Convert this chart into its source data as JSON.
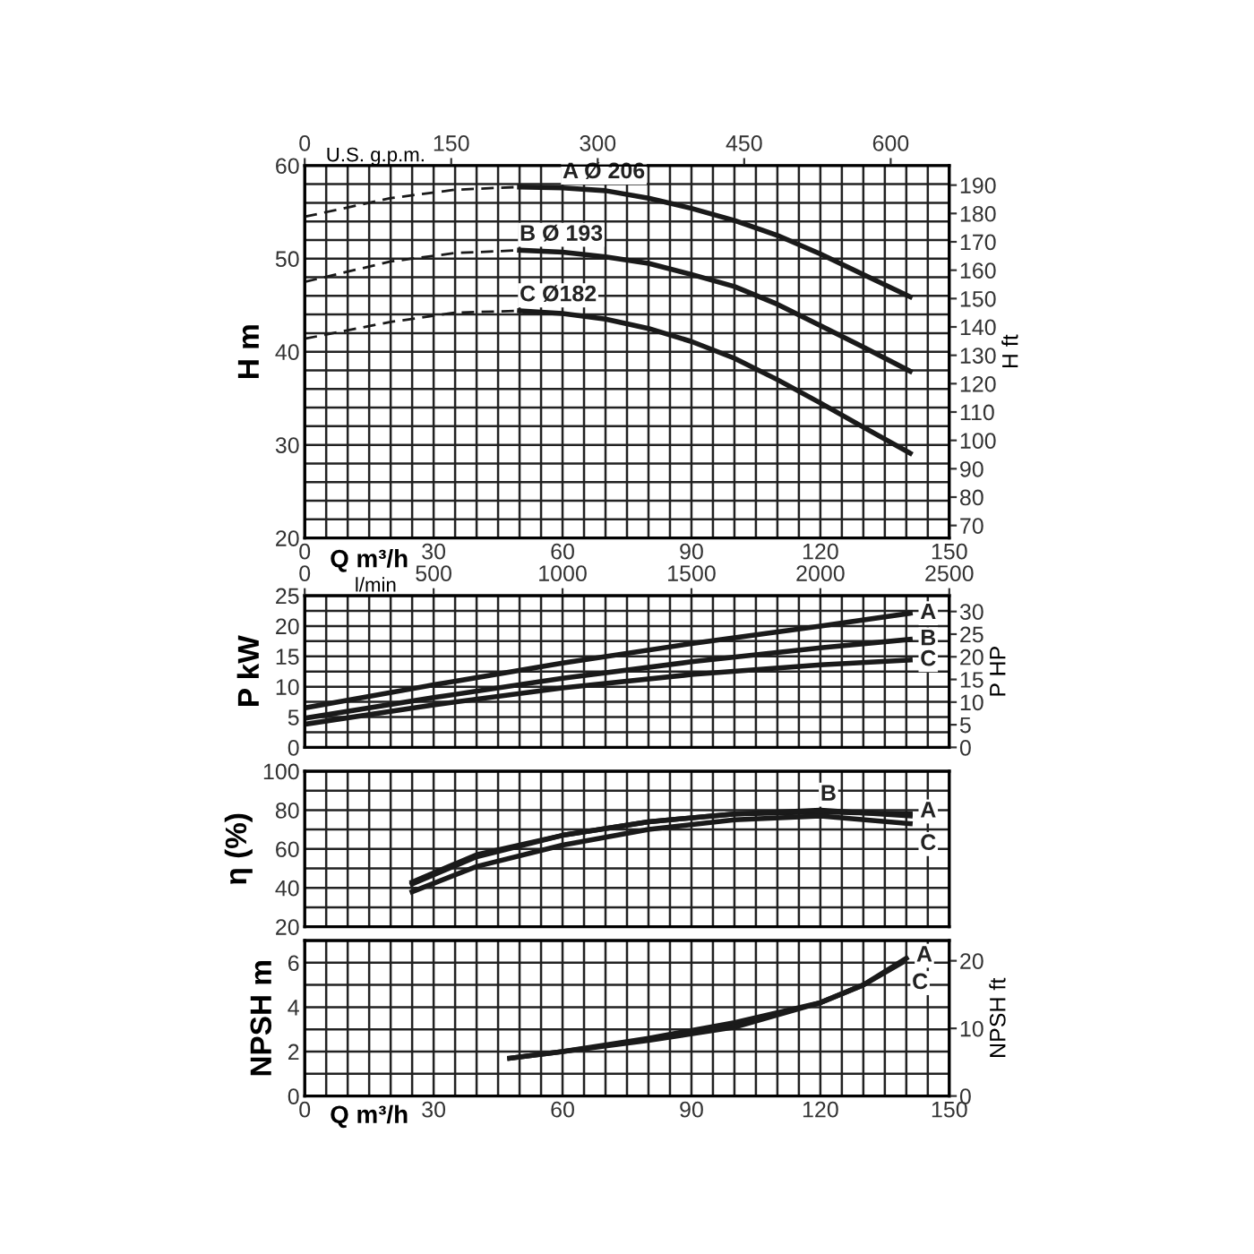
{
  "chart_data": [
    {
      "type": "line",
      "ylabel": "H m",
      "y2label": "H ft",
      "xlabel": "Q m³/h",
      "x2label": "U.S. g.p.m.",
      "grid": true,
      "legend": false,
      "xlim": [
        0,
        150
      ],
      "ylim": [
        20,
        60
      ],
      "x2lim": [
        0,
        660
      ],
      "y2lim": [
        65.6,
        196.9
      ],
      "xticks": [
        0,
        {
          "value": 5,
          "label": null
        },
        {
          "value": 10,
          "label": null
        },
        {
          "value": 15,
          "label": null
        },
        {
          "value": 20,
          "label": null
        },
        {
          "value": 25,
          "label": null
        },
        30,
        {
          "value": 35,
          "label": null
        },
        {
          "value": 40,
          "label": null
        },
        {
          "value": 45,
          "label": null
        },
        {
          "value": 50,
          "label": null
        },
        {
          "value": 55,
          "label": null
        },
        60,
        {
          "value": 65,
          "label": null
        },
        {
          "value": 70,
          "label": null
        },
        {
          "value": 75,
          "label": null
        },
        {
          "value": 80,
          "label": null
        },
        {
          "value": 85,
          "label": null
        },
        90,
        {
          "value": 95,
          "label": null
        },
        {
          "value": 100,
          "label": null
        },
        {
          "value": 105,
          "label": null
        },
        {
          "value": 110,
          "label": null
        },
        {
          "value": 115,
          "label": null
        },
        120,
        {
          "value": 125,
          "label": null
        },
        {
          "value": 130,
          "label": null
        },
        {
          "value": 135,
          "label": null
        },
        {
          "value": 140,
          "label": null
        },
        {
          "value": 145,
          "label": null
        },
        150
      ],
      "yticks": [
        20,
        {
          "value": 22,
          "label": null
        },
        {
          "value": 24,
          "label": null
        },
        {
          "value": 26,
          "label": null
        },
        {
          "value": 28,
          "label": null
        },
        30,
        {
          "value": 32,
          "label": null
        },
        {
          "value": 34,
          "label": null
        },
        {
          "value": 36,
          "label": null
        },
        {
          "value": 38,
          "label": null
        },
        40,
        {
          "value": 42,
          "label": null
        },
        {
          "value": 44,
          "label": null
        },
        {
          "value": 46,
          "label": null
        },
        {
          "value": 48,
          "label": null
        },
        50,
        {
          "value": 52,
          "label": null
        },
        {
          "value": 54,
          "label": null
        },
        {
          "value": 56,
          "label": null
        },
        {
          "value": 58,
          "label": null
        },
        60
      ],
      "x2ticks": [
        0,
        150,
        300,
        450,
        600
      ],
      "y2ticks": [
        70,
        80,
        90,
        100,
        110,
        120,
        130,
        140,
        150,
        160,
        170,
        180,
        190
      ],
      "series": [
        {
          "color": "#1a1a1a",
          "line_style": "dashed",
          "x": [
            0,
            20,
            35,
            50
          ],
          "values": [
            54.5,
            56.5,
            57.4,
            57.7
          ]
        },
        {
          "color": "#1a1a1a",
          "line_style": "solid",
          "x": [
            50,
            60,
            70,
            80,
            90,
            100,
            110,
            120,
            130,
            140.9
          ],
          "values": [
            57.7,
            57.6,
            57.3,
            56.5,
            55.4,
            54.1,
            52.5,
            50.5,
            48.3,
            45.9
          ]
        },
        {
          "color": "#1a1a1a",
          "line_style": "dashed",
          "x": [
            0,
            20,
            35,
            50
          ],
          "values": [
            47.5,
            49.7,
            50.6,
            50.9
          ]
        },
        {
          "color": "#1a1a1a",
          "line_style": "solid",
          "x": [
            50,
            60,
            70,
            80,
            90,
            100,
            110,
            120,
            130,
            140.9
          ],
          "values": [
            50.9,
            50.7,
            50.2,
            49.5,
            48.3,
            47.0,
            45.1,
            42.8,
            40.5,
            37.9
          ]
        },
        {
          "color": "#1a1a1a",
          "line_style": "dashed",
          "x": [
            0,
            20,
            35,
            50
          ],
          "values": [
            41.4,
            43.2,
            44.2,
            44.4
          ]
        },
        {
          "color": "#1a1a1a",
          "line_style": "solid",
          "x": [
            50,
            60,
            70,
            80,
            90,
            100,
            110,
            120,
            130,
            140.9
          ],
          "values": [
            44.4,
            44.1,
            43.5,
            42.5,
            41.1,
            39.3,
            37.0,
            34.5,
            31.9,
            29.1
          ]
        }
      ],
      "annotations": [
        {
          "text": "A Ø 206",
          "x": 60,
          "y": 57.6
        },
        {
          "text": "B Ø 193",
          "x": 50,
          "y": 50.9
        },
        {
          "text": "C Ø182",
          "x": 50,
          "y": 44.4
        }
      ]
    },
    {
      "type": "line",
      "ylabel": "P kW",
      "y2label": "P HP",
      "x2label": "l/min",
      "grid": true,
      "legend": false,
      "tick_labels": "y",
      "xlim": [
        0,
        150
      ],
      "ylim": [
        0,
        25
      ],
      "x2lim": [
        0,
        2500
      ],
      "y2lim": [
        0,
        33.5
      ],
      "xticks": [
        0,
        {
          "value": 5,
          "label": null
        },
        {
          "value": 10,
          "label": null
        },
        {
          "value": 15,
          "label": null
        },
        {
          "value": 20,
          "label": null
        },
        {
          "value": 25,
          "label": null
        },
        30,
        {
          "value": 35,
          "label": null
        },
        {
          "value": 40,
          "label": null
        },
        {
          "value": 45,
          "label": null
        },
        {
          "value": 50,
          "label": null
        },
        {
          "value": 55,
          "label": null
        },
        60,
        {
          "value": 65,
          "label": null
        },
        {
          "value": 70,
          "label": null
        },
        {
          "value": 75,
          "label": null
        },
        {
          "value": 80,
          "label": null
        },
        {
          "value": 85,
          "label": null
        },
        90,
        {
          "value": 95,
          "label": null
        },
        {
          "value": 100,
          "label": null
        },
        {
          "value": 105,
          "label": null
        },
        {
          "value": 110,
          "label": null
        },
        {
          "value": 115,
          "label": null
        },
        120,
        {
          "value": 125,
          "label": null
        },
        {
          "value": 130,
          "label": null
        },
        {
          "value": 135,
          "label": null
        },
        {
          "value": 140,
          "label": null
        },
        {
          "value": 145,
          "label": null
        },
        150
      ],
      "yticks": [
        0,
        {
          "value": 2.5,
          "label": null
        },
        5,
        {
          "value": 7.5,
          "label": null
        },
        10,
        {
          "value": 12.5,
          "label": null
        },
        15,
        {
          "value": 17.5,
          "label": null
        },
        20,
        {
          "value": 22.5,
          "label": null
        },
        25
      ],
      "x2ticks": [
        0,
        500,
        1000,
        1500,
        2000,
        2500
      ],
      "y2ticks": [
        0,
        5,
        10,
        15,
        20,
        25,
        30
      ],
      "series": [
        {
          "color": "#1a1a1a",
          "line_style": "solid",
          "x": [
            0,
            30,
            60,
            90,
            120,
            140.9
          ],
          "values": [
            6.5,
            10.3,
            13.9,
            17.1,
            20.0,
            22.1
          ]
        },
        {
          "color": "#1a1a1a",
          "line_style": "solid",
          "x": [
            0,
            30,
            60,
            90,
            120,
            140.9
          ],
          "values": [
            4.8,
            8.2,
            11.4,
            14.1,
            16.4,
            17.8
          ]
        },
        {
          "color": "#1a1a1a",
          "line_style": "solid",
          "x": [
            0,
            30,
            60,
            90,
            120,
            140.9
          ],
          "values": [
            3.8,
            7.0,
            9.8,
            12.0,
            13.6,
            14.4
          ]
        }
      ],
      "annotations": [
        {
          "text": "A",
          "x": 140.9,
          "y": 22.1
        },
        {
          "text": "B",
          "x": 140.9,
          "y": 17.8
        },
        {
          "text": "C",
          "x": 140.9,
          "y": 14.4
        }
      ]
    },
    {
      "type": "line",
      "ylabel": "η (%)",
      "grid": true,
      "legend": false,
      "tick_labels": "y",
      "xlim": [
        0,
        150
      ],
      "ylim": [
        20,
        100
      ],
      "xticks": [
        0,
        {
          "value": 5,
          "label": null
        },
        {
          "value": 10,
          "label": null
        },
        {
          "value": 15,
          "label": null
        },
        {
          "value": 20,
          "label": null
        },
        {
          "value": 25,
          "label": null
        },
        30,
        {
          "value": 35,
          "label": null
        },
        {
          "value": 40,
          "label": null
        },
        {
          "value": 45,
          "label": null
        },
        {
          "value": 50,
          "label": null
        },
        {
          "value": 55,
          "label": null
        },
        60,
        {
          "value": 65,
          "label": null
        },
        {
          "value": 70,
          "label": null
        },
        {
          "value": 75,
          "label": null
        },
        {
          "value": 80,
          "label": null
        },
        {
          "value": 85,
          "label": null
        },
        90,
        {
          "value": 95,
          "label": null
        },
        {
          "value": 100,
          "label": null
        },
        {
          "value": 105,
          "label": null
        },
        {
          "value": 110,
          "label": null
        },
        {
          "value": 115,
          "label": null
        },
        120,
        {
          "value": 125,
          "label": null
        },
        {
          "value": 130,
          "label": null
        },
        {
          "value": 135,
          "label": null
        },
        {
          "value": 140,
          "label": null
        },
        {
          "value": 145,
          "label": null
        },
        150
      ],
      "yticks": [
        20,
        {
          "value": 30,
          "label": null
        },
        40,
        {
          "value": 50,
          "label": null
        },
        60,
        {
          "value": 70,
          "label": null
        },
        80,
        {
          "value": 90,
          "label": null
        },
        100
      ],
      "series": [
        {
          "color": "#1a1a1a",
          "line_style": "solid",
          "x": [
            25,
            40,
            60,
            80,
            100,
            120,
            140.9
          ],
          "values": [
            43,
            57,
            67,
            74,
            78,
            79,
            78
          ]
        },
        {
          "color": "#1a1a1a",
          "line_style": "solid",
          "x": [
            25,
            40,
            60,
            80,
            100,
            120,
            140.9
          ],
          "values": [
            42,
            56,
            67,
            74,
            78,
            80,
            77
          ]
        },
        {
          "color": "#1a1a1a",
          "line_style": "solid",
          "x": [
            25,
            40,
            60,
            80,
            100,
            120,
            140.9
          ],
          "values": [
            38,
            51,
            62,
            70,
            75,
            77,
            73
          ]
        }
      ],
      "annotations": [
        {
          "text": "B",
          "x": 120,
          "y": 80
        },
        {
          "text": "A",
          "x": 140.9,
          "y": 78
        },
        {
          "text": "C",
          "x": 140.9,
          "y": 73
        }
      ]
    },
    {
      "type": "line",
      "ylabel": "NPSH m",
      "y2label": "NPSH ft",
      "xlabel": "Q m³/h",
      "grid": true,
      "legend": false,
      "xlim": [
        0,
        150
      ],
      "ylim": [
        0,
        7
      ],
      "y2lim": [
        0,
        23
      ],
      "xticks": [
        0,
        {
          "value": 5,
          "label": null
        },
        {
          "value": 10,
          "label": null
        },
        {
          "value": 15,
          "label": null
        },
        {
          "value": 20,
          "label": null
        },
        {
          "value": 25,
          "label": null
        },
        30,
        {
          "value": 35,
          "label": null
        },
        {
          "value": 40,
          "label": null
        },
        {
          "value": 45,
          "label": null
        },
        {
          "value": 50,
          "label": null
        },
        {
          "value": 55,
          "label": null
        },
        60,
        {
          "value": 65,
          "label": null
        },
        {
          "value": 70,
          "label": null
        },
        {
          "value": 75,
          "label": null
        },
        {
          "value": 80,
          "label": null
        },
        {
          "value": 85,
          "label": null
        },
        90,
        {
          "value": 95,
          "label": null
        },
        {
          "value": 100,
          "label": null
        },
        {
          "value": 105,
          "label": null
        },
        {
          "value": 110,
          "label": null
        },
        {
          "value": 115,
          "label": null
        },
        120,
        {
          "value": 125,
          "label": null
        },
        {
          "value": 130,
          "label": null
        },
        {
          "value": 135,
          "label": null
        },
        {
          "value": 140,
          "label": null
        },
        {
          "value": 145,
          "label": null
        },
        150
      ],
      "yticks": [
        0,
        {
          "value": 1,
          "label": null
        },
        2,
        {
          "value": 3,
          "label": null
        },
        4,
        {
          "value": 5,
          "label": null
        },
        6,
        {
          "value": 7,
          "label": null
        }
      ],
      "y2ticks": [
        0,
        10,
        20
      ],
      "series": [
        {
          "color": "#1a1a1a",
          "line_style": "solid",
          "x": [
            47.7,
            60,
            80,
            100,
            120,
            130,
            140
          ],
          "values": [
            1.7,
            2.0,
            2.6,
            3.3,
            4.2,
            5.0,
            6.2
          ]
        },
        {
          "color": "#1a1a1a",
          "line_style": "solid",
          "x": [
            47.7,
            60,
            80,
            100,
            120,
            130,
            139
          ],
          "values": [
            1.7,
            2.0,
            2.5,
            3.1,
            4.2,
            5.0,
            6.0
          ]
        }
      ],
      "annotations": [
        {
          "text": "A",
          "x": 140,
          "y": 6.2
        },
        {
          "text": "C",
          "x": 139,
          "y": 6.0
        }
      ]
    }
  ]
}
